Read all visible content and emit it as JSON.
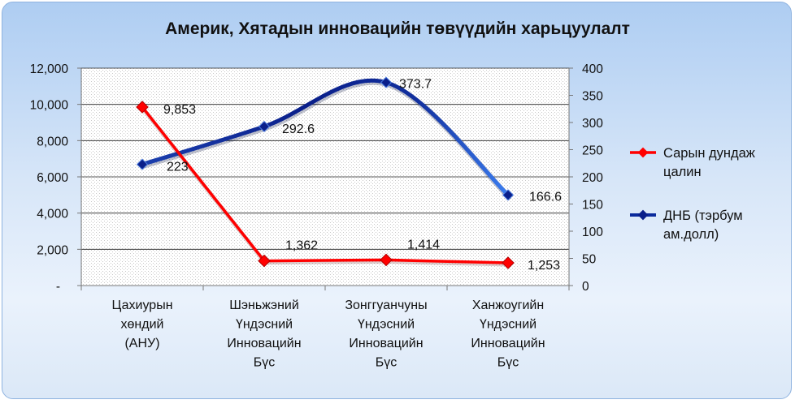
{
  "chart_data": {
    "type": "line",
    "title": "Америк, Хятадын инновацийн төвүүдийн харьцуулалт",
    "categories": [
      [
        "Цахиурын",
        "хөндий",
        "(АНУ)"
      ],
      [
        "Шэньжэний",
        "Үндэсний",
        "Инновацийн",
        "Бүс"
      ],
      [
        "Зонггуанчуны",
        "Үндэсний",
        "Инновацийн",
        "Бүс"
      ],
      [
        "Ханжоугийн",
        "Үндэсний",
        "Инновацийн",
        "Бүс"
      ]
    ],
    "y_left": {
      "ylim": [
        0,
        12000
      ],
      "ticks": [
        "-",
        "2,000",
        "4,000",
        "6,000",
        "8,000",
        "10,000",
        "12,000"
      ],
      "tick_values": [
        0,
        2000,
        4000,
        6000,
        8000,
        10000,
        12000
      ]
    },
    "y_right": {
      "ylim": [
        0,
        400
      ],
      "ticks": [
        "0",
        "50",
        "100",
        "150",
        "200",
        "250",
        "300",
        "350",
        "400"
      ],
      "tick_values": [
        0,
        50,
        100,
        150,
        200,
        250,
        300,
        350,
        400
      ]
    },
    "series": [
      {
        "name": [
          "Сарын дундаж",
          "цалин"
        ],
        "axis": "left",
        "color": "#ff0000",
        "values": [
          9853,
          1362,
          1414,
          1253
        ],
        "labels": [
          "9,853",
          "1,362",
          "1,414",
          "1,253"
        ]
      },
      {
        "name": [
          "ДНБ (тэрбум",
          "ам.долл)"
        ],
        "axis": "right",
        "color": "#0a2a9c",
        "values": [
          223,
          292.6,
          373.7,
          166.6
        ],
        "labels": [
          "223",
          "292.6",
          "373.7",
          "166.6"
        ]
      }
    ],
    "grid": true,
    "legend_position": "right"
  }
}
